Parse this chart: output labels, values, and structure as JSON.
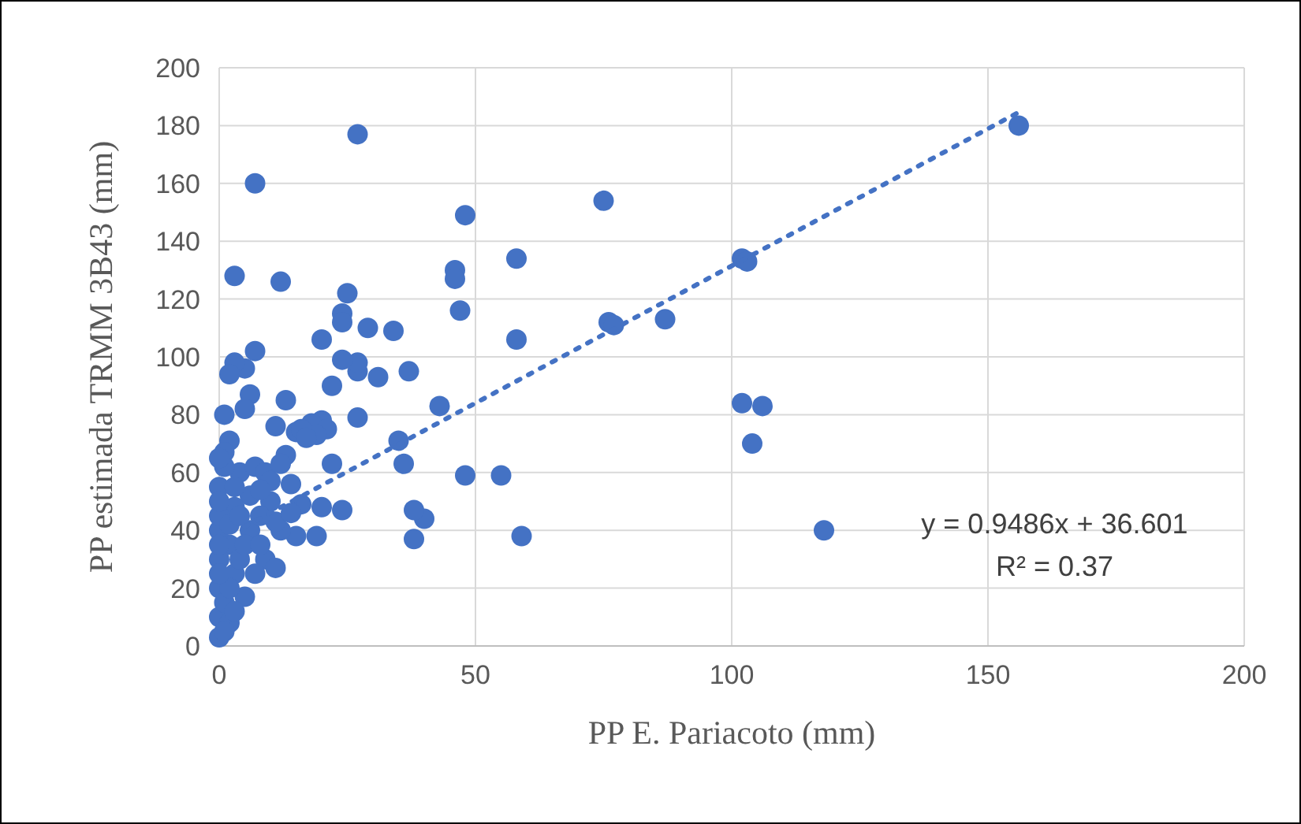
{
  "chart_data": {
    "type": "scatter",
    "xlabel": "PP E. Pariacoto (mm)",
    "ylabel": "PP estimada TRMM 3B43 (mm)",
    "xlim": [
      0,
      200
    ],
    "xticks": [
      0,
      50,
      100,
      150,
      200
    ],
    "ylim": [
      0,
      200
    ],
    "yticks": [
      0,
      20,
      40,
      60,
      80,
      100,
      120,
      140,
      160,
      180,
      200
    ],
    "grid": true,
    "annotations": [
      "y = 0.9486x + 36.601",
      "R² = 0.37"
    ],
    "series": [
      {
        "color": "#4472c4",
        "marker": "circle",
        "x": [
          156,
          27,
          7,
          3,
          12,
          48,
          75,
          46,
          46,
          58,
          47,
          76,
          77,
          87,
          58,
          102,
          103,
          102,
          106,
          104,
          118,
          59,
          55,
          48,
          40,
          38,
          38,
          36,
          35,
          43,
          37,
          34,
          29,
          31,
          27,
          27,
          25,
          24,
          24,
          24,
          22,
          20,
          27,
          20,
          18,
          21,
          19,
          22,
          20,
          24,
          19,
          15,
          12,
          13,
          13,
          11,
          7,
          5,
          3,
          2,
          6,
          5,
          1,
          2,
          1,
          4,
          7,
          9,
          10,
          14,
          16,
          11,
          9,
          11,
          5,
          3,
          2,
          0,
          0,
          0,
          0,
          0,
          0,
          1,
          2,
          4,
          6,
          8,
          6,
          3,
          1,
          0,
          2,
          3,
          5,
          7,
          8,
          1,
          0,
          0,
          0,
          0,
          2,
          3,
          4,
          15,
          16,
          17,
          12,
          10,
          8,
          14
        ],
        "values": [
          180,
          177,
          160,
          128,
          126,
          149,
          154,
          130,
          127,
          134,
          116,
          112,
          111,
          113,
          106,
          134,
          133,
          84,
          83,
          70,
          40,
          38,
          59,
          59,
          44,
          47,
          37,
          63,
          71,
          83,
          95,
          109,
          110,
          93,
          95,
          98,
          122,
          115,
          112,
          99,
          90,
          106,
          79,
          78,
          77,
          75,
          73,
          63,
          48,
          47,
          38,
          38,
          40,
          66,
          85,
          76,
          102,
          96,
          98,
          94,
          87,
          82,
          80,
          71,
          67,
          60,
          62,
          60,
          50,
          56,
          49,
          43,
          30,
          27,
          17,
          25,
          35,
          55,
          40,
          30,
          20,
          10,
          3,
          15,
          8,
          30,
          40,
          45,
          52,
          48,
          62,
          65,
          20,
          12,
          35,
          25,
          35,
          5,
          25,
          35,
          45,
          50,
          42,
          55,
          45,
          74,
          75,
          72,
          63,
          57,
          54,
          46
        ]
      },
      {
        "type": "line",
        "color": "#4472c4",
        "line_style": "dotted",
        "marker": "none",
        "x": [
          5,
          156
        ],
        "values": [
          41.3,
          184.6
        ]
      }
    ]
  }
}
